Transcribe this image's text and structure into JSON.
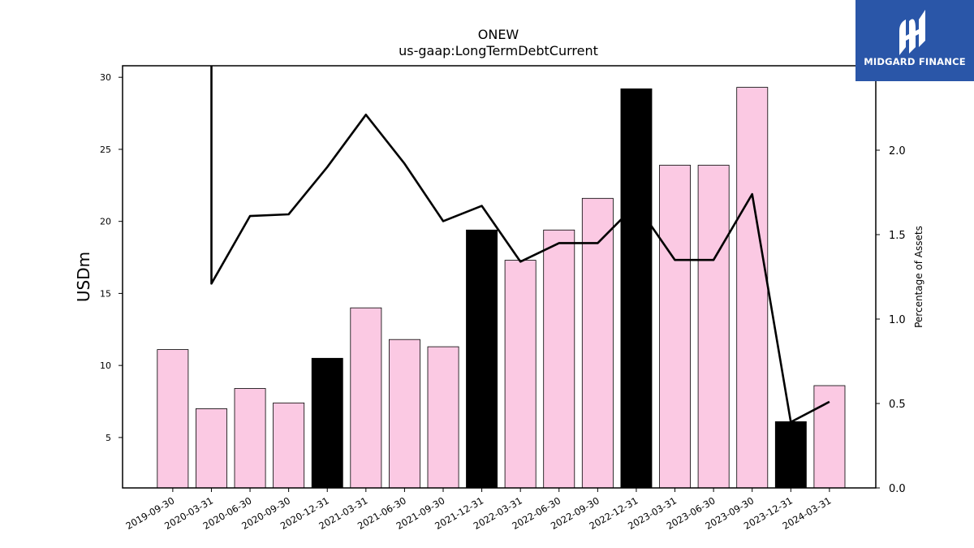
{
  "chart_data": {
    "type": "bar",
    "title": "ONEW",
    "subtitle": "us-gaap:LongTermDebtCurrent",
    "ylabel": "USDm",
    "y2label": "Percentage of Assets",
    "categories": [
      "2019-09-30",
      "2020-03-31",
      "2020-06-30",
      "2020-09-30",
      "2020-12-31",
      "2021-03-31",
      "2021-06-30",
      "2021-09-30",
      "2021-12-31",
      "2022-03-31",
      "2022-06-30",
      "2022-09-30",
      "2022-12-31",
      "2023-03-31",
      "2023-06-30",
      "2023-09-30",
      "2023-12-31",
      "2024-03-31"
    ],
    "series": [
      {
        "type": "bar",
        "values": [
          11.1,
          7.0,
          8.4,
          7.4,
          10.5,
          14.0,
          11.8,
          11.3,
          19.4,
          17.3,
          19.4,
          21.6,
          29.2,
          23.9,
          23.9,
          29.3,
          6.1,
          8.6
        ]
      },
      {
        "type": "line",
        "axis": "right",
        "values": [
          null,
          1.21,
          1.61,
          1.62,
          1.9,
          2.21,
          1.92,
          1.58,
          1.67,
          1.34,
          1.45,
          1.45,
          1.68,
          1.35,
          1.35,
          1.74,
          0.39,
          0.51
        ]
      }
    ],
    "highlighted_categories": [
      "2020-12-31",
      "2021-12-31",
      "2022-12-31",
      "2023-12-31"
    ],
    "line_start_off_scale": true,
    "ylim": [
      1.5,
      30.8
    ],
    "y2lim": [
      0,
      2.5
    ],
    "yticks": [
      5,
      10,
      15,
      20,
      25,
      30
    ],
    "y2ticks": [
      "0.0",
      "0.5",
      "1.0",
      "1.5",
      "2.0",
      "2.5"
    ],
    "colors": {
      "bar": "#fbc9e3",
      "highlight_bar": "#000000",
      "line": "#000000"
    },
    "grid": false
  },
  "logo": {
    "text": "MIDGARD FINANCE",
    "icon": "midgard-finance-logo-icon",
    "background": "#2a56a8"
  }
}
